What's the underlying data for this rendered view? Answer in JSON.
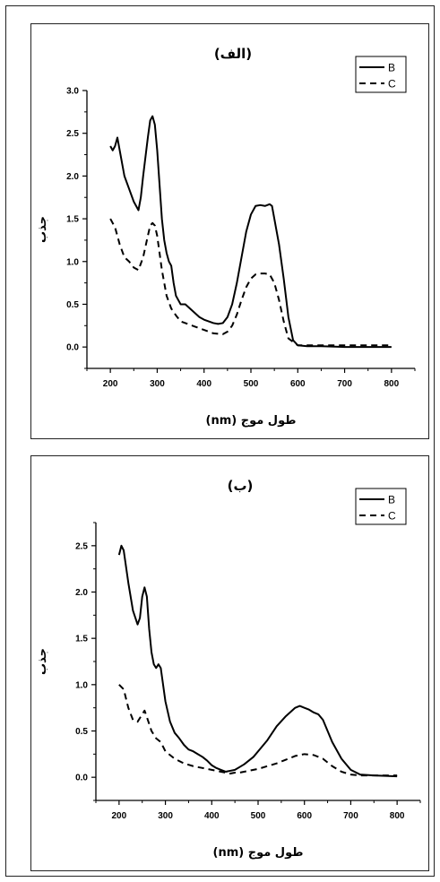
{
  "chart_data": [
    {
      "type": "line",
      "title": "(الف)",
      "xlabel": "طول موج (nm)",
      "ylabel": "جذب",
      "xlim": [
        150,
        850
      ],
      "ylim": [
        -0.25,
        3.0
      ],
      "x_ticks": [
        200,
        300,
        400,
        500,
        600,
        700,
        800
      ],
      "y_ticks": [
        0.0,
        0.5,
        1.0,
        1.5,
        2.0,
        2.5,
        3.0
      ],
      "y_tick_decimals": 1,
      "grid": false,
      "legend_position": "top-right",
      "series": [
        {
          "name": "B",
          "style": "solid",
          "x": [
            200,
            205,
            210,
            215,
            220,
            230,
            240,
            250,
            260,
            265,
            270,
            280,
            285,
            290,
            295,
            300,
            305,
            310,
            315,
            320,
            325,
            330,
            335,
            340,
            350,
            360,
            370,
            380,
            390,
            400,
            410,
            420,
            430,
            440,
            450,
            460,
            470,
            480,
            490,
            500,
            510,
            520,
            530,
            540,
            545,
            550,
            560,
            570,
            580,
            590,
            600,
            620,
            650,
            700,
            750,
            800
          ],
          "y": [
            2.35,
            2.3,
            2.35,
            2.45,
            2.3,
            2.0,
            1.85,
            1.7,
            1.6,
            1.75,
            2.0,
            2.45,
            2.65,
            2.7,
            2.6,
            2.3,
            1.9,
            1.5,
            1.25,
            1.1,
            1.0,
            0.95,
            0.75,
            0.6,
            0.5,
            0.5,
            0.45,
            0.4,
            0.35,
            0.32,
            0.3,
            0.28,
            0.27,
            0.28,
            0.35,
            0.5,
            0.75,
            1.05,
            1.35,
            1.55,
            1.65,
            1.66,
            1.65,
            1.67,
            1.65,
            1.5,
            1.2,
            0.8,
            0.35,
            0.08,
            0.02,
            0.01,
            0.01,
            0.0,
            0.0,
            0.0
          ]
        },
        {
          "name": "C",
          "style": "dashed",
          "x": [
            200,
            210,
            220,
            230,
            240,
            250,
            260,
            270,
            280,
            285,
            290,
            295,
            300,
            305,
            310,
            320,
            330,
            340,
            350,
            360,
            370,
            380,
            400,
            420,
            440,
            450,
            460,
            470,
            480,
            490,
            500,
            510,
            520,
            530,
            540,
            550,
            560,
            570,
            580,
            600,
            650,
            700,
            750,
            800
          ],
          "y": [
            1.5,
            1.4,
            1.2,
            1.05,
            1.0,
            0.93,
            0.9,
            1.05,
            1.3,
            1.42,
            1.45,
            1.42,
            1.3,
            1.1,
            0.9,
            0.6,
            0.45,
            0.37,
            0.3,
            0.28,
            0.26,
            0.24,
            0.2,
            0.16,
            0.15,
            0.18,
            0.25,
            0.38,
            0.55,
            0.7,
            0.8,
            0.85,
            0.86,
            0.86,
            0.85,
            0.75,
            0.55,
            0.3,
            0.1,
            0.02,
            0.02,
            0.02,
            0.02,
            0.02
          ]
        }
      ]
    },
    {
      "type": "line",
      "title": "(ب)",
      "xlabel": "طول موج (nm)",
      "ylabel": "جذب",
      "xlim": [
        150,
        850
      ],
      "ylim": [
        -0.25,
        2.75
      ],
      "x_ticks": [
        200,
        300,
        400,
        500,
        600,
        700,
        800
      ],
      "y_ticks": [
        0.0,
        0.5,
        1.0,
        1.5,
        2.0,
        2.5
      ],
      "y_tick_decimals": 1,
      "grid": false,
      "legend_position": "top-right",
      "series": [
        {
          "name": "B",
          "style": "solid",
          "x": [
            200,
            205,
            210,
            220,
            230,
            240,
            245,
            250,
            255,
            260,
            265,
            270,
            275,
            280,
            285,
            290,
            295,
            300,
            310,
            320,
            330,
            340,
            350,
            360,
            370,
            380,
            390,
            400,
            410,
            420,
            430,
            440,
            450,
            460,
            470,
            480,
            490,
            500,
            520,
            540,
            560,
            580,
            590,
            600,
            610,
            620,
            630,
            640,
            650,
            660,
            680,
            700,
            720,
            750,
            800
          ],
          "y": [
            2.4,
            2.5,
            2.45,
            2.1,
            1.8,
            1.65,
            1.72,
            1.95,
            2.05,
            1.95,
            1.6,
            1.35,
            1.22,
            1.18,
            1.22,
            1.18,
            1.0,
            0.82,
            0.6,
            0.48,
            0.42,
            0.35,
            0.3,
            0.28,
            0.25,
            0.22,
            0.18,
            0.13,
            0.1,
            0.08,
            0.06,
            0.07,
            0.08,
            0.11,
            0.14,
            0.18,
            0.22,
            0.28,
            0.4,
            0.55,
            0.66,
            0.75,
            0.77,
            0.75,
            0.73,
            0.7,
            0.68,
            0.62,
            0.5,
            0.38,
            0.2,
            0.08,
            0.03,
            0.02,
            0.01
          ]
        },
        {
          "name": "C",
          "style": "dashed",
          "x": [
            200,
            210,
            220,
            230,
            240,
            250,
            255,
            260,
            270,
            280,
            290,
            300,
            320,
            340,
            360,
            380,
            400,
            420,
            440,
            450,
            460,
            480,
            500,
            520,
            540,
            560,
            580,
            600,
            620,
            640,
            660,
            680,
            700,
            720,
            750,
            800
          ],
          "y": [
            1.0,
            0.95,
            0.75,
            0.62,
            0.6,
            0.68,
            0.72,
            0.65,
            0.5,
            0.42,
            0.38,
            0.28,
            0.2,
            0.15,
            0.12,
            0.1,
            0.08,
            0.06,
            0.04,
            0.05,
            0.05,
            0.07,
            0.09,
            0.12,
            0.15,
            0.19,
            0.23,
            0.25,
            0.24,
            0.2,
            0.12,
            0.06,
            0.03,
            0.02,
            0.02,
            0.02
          ]
        }
      ]
    }
  ]
}
